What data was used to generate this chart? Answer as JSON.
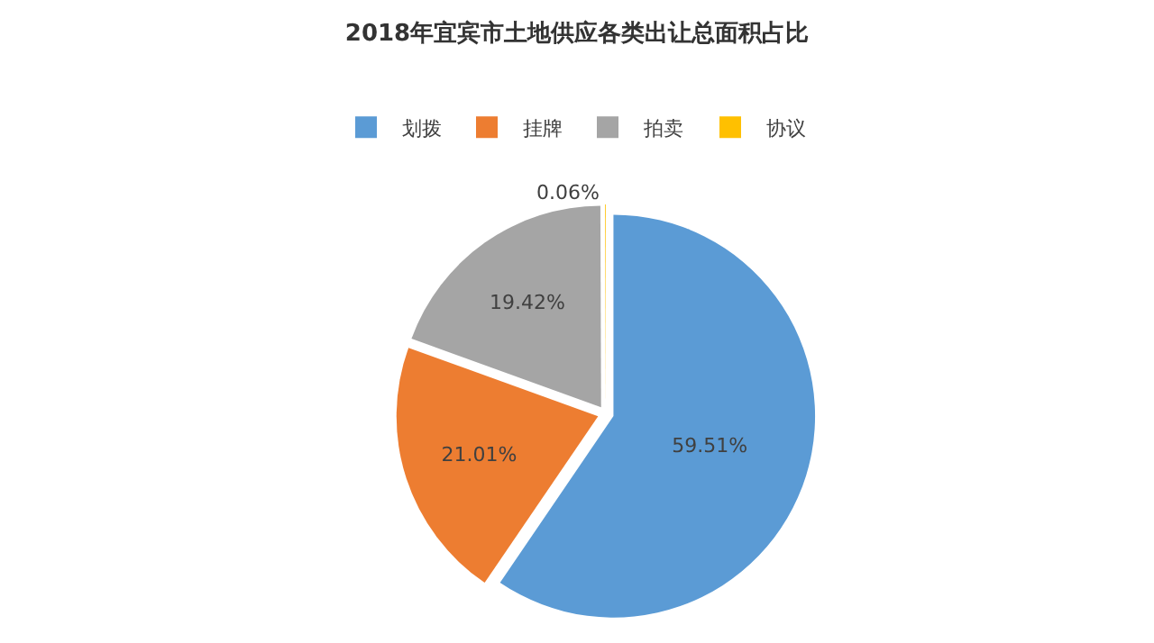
{
  "chart_data": {
    "type": "pie",
    "title": "2018年宜宾市土地供应各类出让总面积占比",
    "categories": [
      "划拨",
      "挂牌",
      "拍卖",
      "协议"
    ],
    "values": [
      59.51,
      21.01,
      19.42,
      0.06
    ],
    "colors": [
      "#5b9bd5",
      "#ed7d31",
      "#a5a5a5",
      "#ffc000"
    ],
    "value_labels": [
      "59.51%",
      "21.01%",
      "19.42%",
      "0.06%"
    ],
    "legend": "top"
  }
}
